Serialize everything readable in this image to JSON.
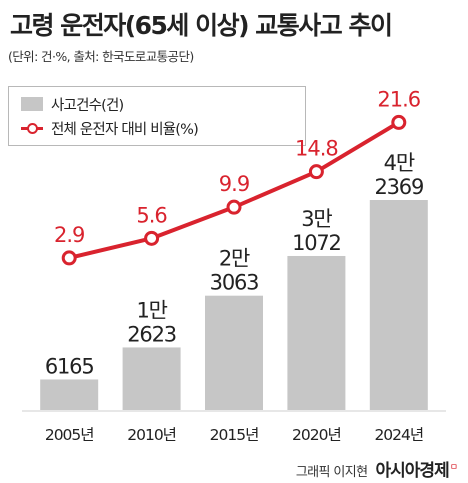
{
  "title": "고령 운전자(65세 이상) 교통사고 추이",
  "subtitle": "(단위: 건·%, 출처: 한국도로교통공단)",
  "legend": {
    "bar_label": "사고건수(건)",
    "line_label": "전체 운전자 대비 비율(%)"
  },
  "footer": {
    "credit": "그래픽 이지현",
    "brand": "아시아경제",
    "brand_mark": "ㅁ"
  },
  "colors": {
    "bar": "#c6c6c6",
    "line": "#d9232e",
    "line_value_text": "#d9232e"
  },
  "chart_data": {
    "type": "bar",
    "categories": [
      "2005년",
      "2010년",
      "2015년",
      "2020년",
      "2024년"
    ],
    "series": [
      {
        "kind": "bar",
        "values": [
          6165,
          12623,
          23063,
          31072,
          42369
        ],
        "labels": [
          [
            "6165"
          ],
          [
            "1만",
            "2623"
          ],
          [
            "2만",
            "3063"
          ],
          [
            "3만",
            "1072"
          ],
          [
            "4만",
            "2369"
          ]
        ]
      },
      {
        "kind": "line",
        "values": [
          2.9,
          5.6,
          9.9,
          14.8,
          21.6
        ],
        "labels": [
          "2.9",
          "5.6",
          "9.9",
          "14.8",
          "21.6"
        ]
      }
    ],
    "grid": false,
    "legend_position": "top-left"
  }
}
